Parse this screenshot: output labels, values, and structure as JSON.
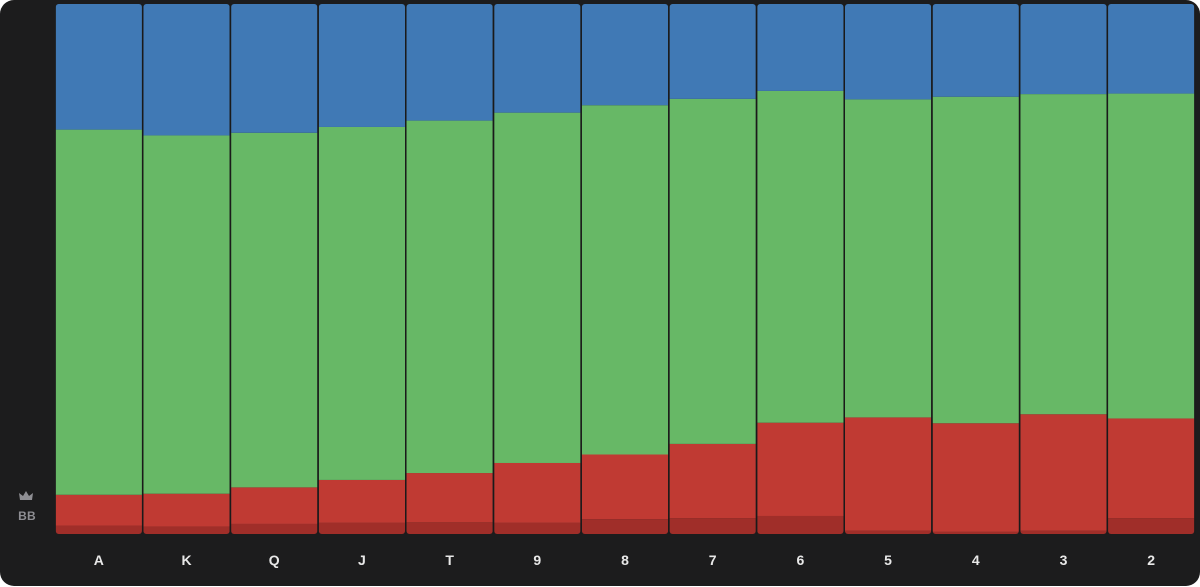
{
  "colors": {
    "background": "#1c1c1d",
    "top_segment": "#4079b5",
    "middle_segment": "#67b866",
    "bottom_segment": "#c03a33",
    "base_segment": "#a02e29",
    "divider": "#1a1a1a"
  },
  "yaxis": {
    "icon": "crown-icon",
    "label": "BB"
  },
  "chart_data": {
    "type": "bar",
    "stacked": true,
    "normalized": true,
    "ylim": [
      0,
      100
    ],
    "categories": [
      "A",
      "K",
      "Q",
      "J",
      "T",
      "9",
      "8",
      "7",
      "6",
      "5",
      "4",
      "3",
      "2"
    ],
    "series": [
      {
        "color": "#a02e29",
        "values": [
          1.6,
          1.4,
          1.9,
          2.1,
          2.2,
          2.1,
          2.8,
          3.0,
          3.4,
          0.6,
          0.4,
          0.6,
          3.0
        ]
      },
      {
        "color": "#c03a33",
        "values": [
          5.8,
          6.2,
          6.9,
          8.1,
          9.3,
          11.3,
          12.2,
          14.0,
          17.6,
          21.4,
          20.5,
          22.0,
          18.8
        ]
      },
      {
        "color": "#67b866",
        "values": [
          68.9,
          67.6,
          66.9,
          66.6,
          66.5,
          66.1,
          65.9,
          65.1,
          62.6,
          60.0,
          61.6,
          60.4,
          61.3
        ]
      },
      {
        "color": "#4079b5",
        "values": [
          23.7,
          24.8,
          24.3,
          23.2,
          22.0,
          20.5,
          19.1,
          17.9,
          16.4,
          18.0,
          17.5,
          17.0,
          16.9
        ]
      }
    ]
  }
}
